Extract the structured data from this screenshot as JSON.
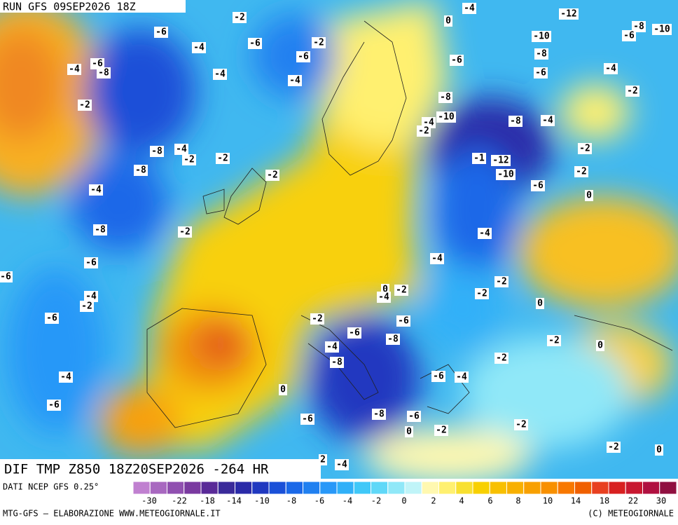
{
  "header": {
    "run": "RUN GFS 09SEP2026 18Z"
  },
  "map": {
    "title": "DIF TMP Z850 18Z20SEP2026 -264 HR",
    "contour_labels": [
      -2,
      0,
      -4,
      -12,
      -8,
      -6,
      -10,
      -6,
      -4,
      -6,
      -2,
      -6,
      -10,
      -8,
      -6,
      -6,
      -4,
      -6,
      -4,
      -8,
      -4,
      -4,
      -2,
      -8,
      -2,
      -10,
      -4,
      -2,
      -8,
      -4,
      -8,
      -4,
      -2,
      -2,
      -12,
      -1,
      -2,
      -8,
      -2,
      -10,
      -2,
      -4,
      -6,
      0,
      -8,
      -2,
      -4,
      -6,
      -4,
      -6,
      0,
      -2,
      -2,
      -2,
      -4,
      -4,
      -2,
      0,
      -6,
      -2,
      -6,
      -6,
      -8,
      -2,
      0,
      -4,
      -2,
      -8,
      -4,
      -6,
      -4,
      0,
      -6,
      -8,
      -6,
      -6,
      -2,
      0,
      -2,
      -2,
      0,
      2,
      -4
    ]
  },
  "colorbar": {
    "source": "DATI NCEP GFS 0.25°",
    "colors": [
      "#c080d0",
      "#a868c0",
      "#9050b0",
      "#7a3aa0",
      "#5a2a98",
      "#3a2a9a",
      "#2a2aa8",
      "#2038c0",
      "#1a50d8",
      "#1a68e8",
      "#2080f0",
      "#2898f8",
      "#30b0f8",
      "#40c8f8",
      "#60d8f8",
      "#90e8f8",
      "#c0f4f8",
      "#fff8b0",
      "#fff070",
      "#f8e030",
      "#f8d000",
      "#f8c000",
      "#f8b000",
      "#f8a000",
      "#f89000",
      "#f87800",
      "#f06000",
      "#e84020",
      "#d82020",
      "#c81830",
      "#b01040",
      "#901040"
    ],
    "ticks": [
      -30,
      -22,
      -18,
      -14,
      -10,
      -8,
      -6,
      -4,
      -2,
      0,
      2,
      4,
      6,
      8,
      10,
      14,
      18,
      22,
      30
    ]
  },
  "footer": {
    "left": "MTG-GFS – ELABORAZIONE WWW.METEOGIORNALE.IT",
    "right": "(C) METEOGIORNALE"
  }
}
